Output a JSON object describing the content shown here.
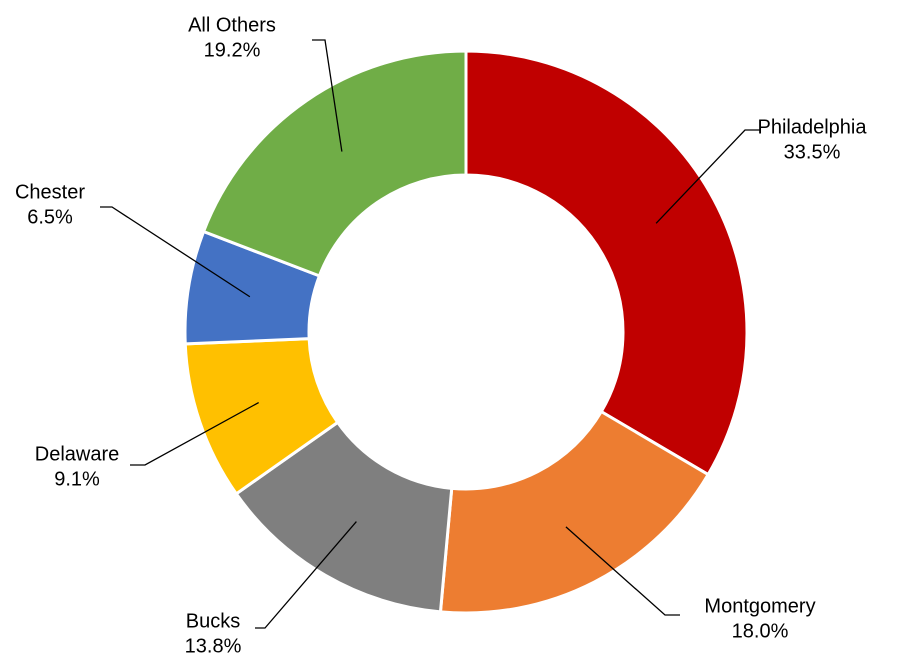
{
  "chart_data": {
    "type": "donut",
    "categories": [
      "Philadelphia",
      "Montgomery",
      "Bucks",
      "Delaware",
      "Chester",
      "All Others"
    ],
    "values": [
      33.5,
      18.0,
      13.8,
      9.1,
      6.5,
      19.2
    ],
    "value_labels": [
      "33.5%",
      "18.0%",
      "13.8%",
      "9.1%",
      "6.5%",
      "19.2%"
    ],
    "colors": [
      "#c00000",
      "#ed7d31",
      "#7f7f7f",
      "#ffc000",
      "#4472c4",
      "#70ad47"
    ]
  }
}
